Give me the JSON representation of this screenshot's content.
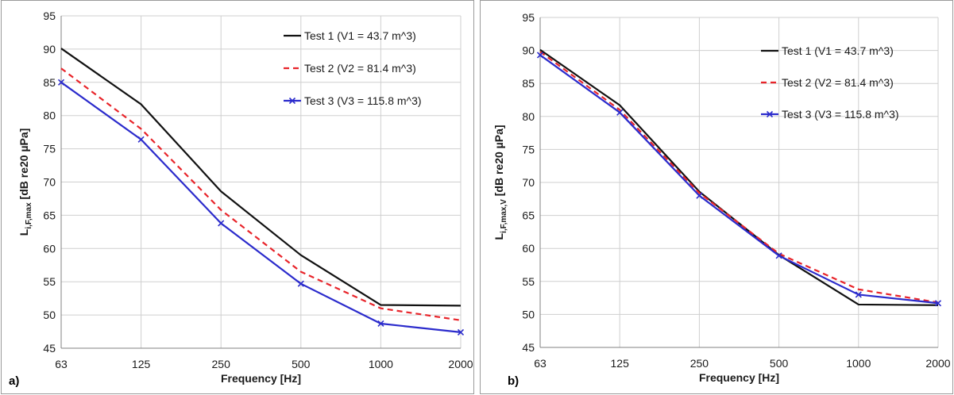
{
  "chart_data": [
    {
      "type": "line",
      "panel_label": "a)",
      "xlabel": "Frequency [Hz]",
      "ylabel": {
        "main": "L",
        "sub": "i,F,max",
        "rest": " [dB re20 µPa]"
      },
      "categories": [
        "63",
        "125",
        "250",
        "500",
        "1000",
        "2000"
      ],
      "ylim": [
        45,
        95
      ],
      "yticks": [
        45,
        50,
        55,
        60,
        65,
        70,
        75,
        80,
        85,
        90,
        95
      ],
      "grid": true,
      "legend_position": "top-right",
      "series": [
        {
          "name": "Test 1 (V1 = 43.7 m^3)",
          "values": [
            90.1,
            81.7,
            68.6,
            59.0,
            51.5,
            51.4
          ],
          "color": "#111111",
          "style": "solid",
          "marker": "none"
        },
        {
          "name": "Test 2 (V2 = 81.4 m^3)",
          "values": [
            87.1,
            78.0,
            65.8,
            56.5,
            51.0,
            49.2
          ],
          "color": "#e8242a",
          "style": "dashed",
          "marker": "none"
        },
        {
          "name": "Test 3 (V3 = 115.8 m^3)",
          "values": [
            85.0,
            76.4,
            63.8,
            54.7,
            48.7,
            47.4
          ],
          "color": "#2b2bcc",
          "style": "solid",
          "marker": "x"
        }
      ]
    },
    {
      "type": "line",
      "panel_label": "b)",
      "xlabel": "Frequency [Hz]",
      "ylabel": {
        "main": "L",
        "sub": "i,F,max,V",
        "rest": " [dB re20 µPa]"
      },
      "categories": [
        "63",
        "125",
        "250",
        "500",
        "1000",
        "2000"
      ],
      "ylim": [
        45,
        95
      ],
      "yticks": [
        45,
        50,
        55,
        60,
        65,
        70,
        75,
        80,
        85,
        90,
        95
      ],
      "grid": true,
      "legend_position": "top-right",
      "series": [
        {
          "name": "Test 1 (V1 = 43.7 m^3)",
          "values": [
            90.1,
            81.7,
            68.6,
            59.0,
            51.5,
            51.4
          ],
          "color": "#111111",
          "style": "solid",
          "marker": "none"
        },
        {
          "name": "Test 2 (V2 = 81.4 m^3)",
          "values": [
            89.8,
            81.0,
            68.4,
            59.2,
            53.8,
            51.8
          ],
          "color": "#e8242a",
          "style": "dashed",
          "marker": "none"
        },
        {
          "name": "Test 3 (V3 = 115.8 m^3)",
          "values": [
            89.3,
            80.6,
            68.0,
            58.9,
            53.0,
            51.7
          ],
          "color": "#2b2bcc",
          "style": "solid",
          "marker": "x"
        }
      ]
    }
  ]
}
